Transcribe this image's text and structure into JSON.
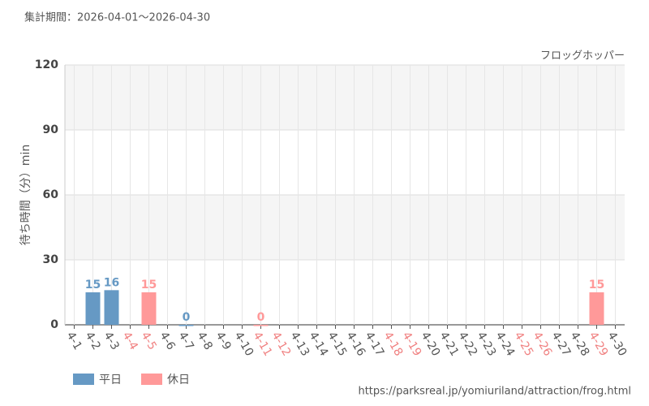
{
  "chart_data": {
    "type": "bar",
    "subtitle": "集計期間：2026-04-01～2026-04-30",
    "title": "フロッグホッパー",
    "y_label": "待ち時間（分）min",
    "source": "https://parksreal.jp/yomiuriland/attraction/frog.html",
    "categories": [
      "4-1",
      "4-2",
      "4-3",
      "4-4",
      "4-5",
      "4-6",
      "4-7",
      "4-8",
      "4-9",
      "4-10",
      "4-11",
      "4-12",
      "4-13",
      "4-14",
      "4-15",
      "4-16",
      "4-17",
      "4-18",
      "4-19",
      "4-20",
      "4-21",
      "4-22",
      "4-23",
      "4-24",
      "4-25",
      "4-26",
      "4-27",
      "4-28",
      "4-29",
      "4-30"
    ],
    "category_colors": [
      "#555",
      "#555",
      "#555",
      "#f08080",
      "#f08080",
      "#555",
      "#555",
      "#555",
      "#555",
      "#555",
      "#f08080",
      "#f08080",
      "#555",
      "#555",
      "#555",
      "#555",
      "#555",
      "#f08080",
      "#f08080",
      "#555",
      "#555",
      "#555",
      "#555",
      "#555",
      "#f08080",
      "#f08080",
      "#555",
      "#555",
      "#f08080",
      "#555"
    ],
    "series": [
      {
        "name": "平日",
        "color": "#6699c4",
        "values": [
          null,
          15,
          16,
          null,
          null,
          null,
          0,
          null,
          null,
          null,
          null,
          null,
          null,
          null,
          null,
          null,
          null,
          null,
          null,
          null,
          null,
          null,
          null,
          null,
          null,
          null,
          null,
          null,
          null,
          null
        ]
      },
      {
        "name": "休日",
        "color": "#ff9999",
        "values": [
          null,
          null,
          null,
          null,
          15,
          null,
          null,
          null,
          null,
          null,
          0,
          null,
          null,
          null,
          null,
          null,
          null,
          null,
          null,
          null,
          null,
          null,
          null,
          null,
          null,
          null,
          null,
          null,
          15,
          null
        ]
      }
    ],
    "ylim": [
      0,
      120
    ],
    "yticks": [
      0,
      30,
      60,
      90,
      120
    ],
    "grid": true,
    "legend": "bottom-left"
  }
}
